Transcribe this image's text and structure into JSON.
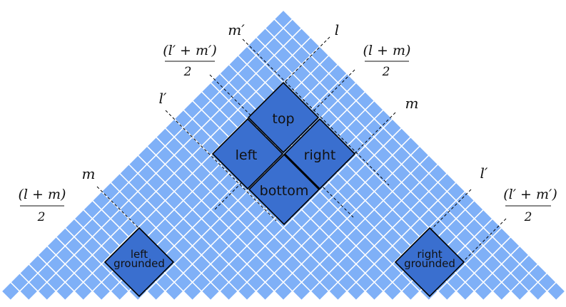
{
  "colors": {
    "cell": "#7fb0f7",
    "highlight": "#3a6fcf",
    "grid_line": "#ffffff",
    "outline": "#000000",
    "dashed": "#000000"
  },
  "labels": {
    "m_prime": "m′",
    "l_top": "l",
    "l_prime_m_prime_half_left_num": "(l′ + m′)",
    "l_prime_m_prime_half_left_den": "2",
    "l_m_half_right_num": "(l + m)",
    "l_m_half_right_den": "2",
    "l_prime_left": "l′",
    "m_right": "m",
    "m_left": "m",
    "l_m_half_left_num": "(l + m)",
    "l_m_half_left_den": "2",
    "l_prime_right": "l′",
    "l_prime_m_prime_half_right_num": "(l′ + m′)",
    "l_prime_m_prime_half_right_den": "2"
  },
  "boxes": {
    "top": "top",
    "left": "left",
    "right": "right",
    "bottom": "bottom",
    "left_grounded_1": "left",
    "left_grounded_2": "grounded",
    "right_grounded_1": "right",
    "right_grounded_2": "grounded"
  }
}
